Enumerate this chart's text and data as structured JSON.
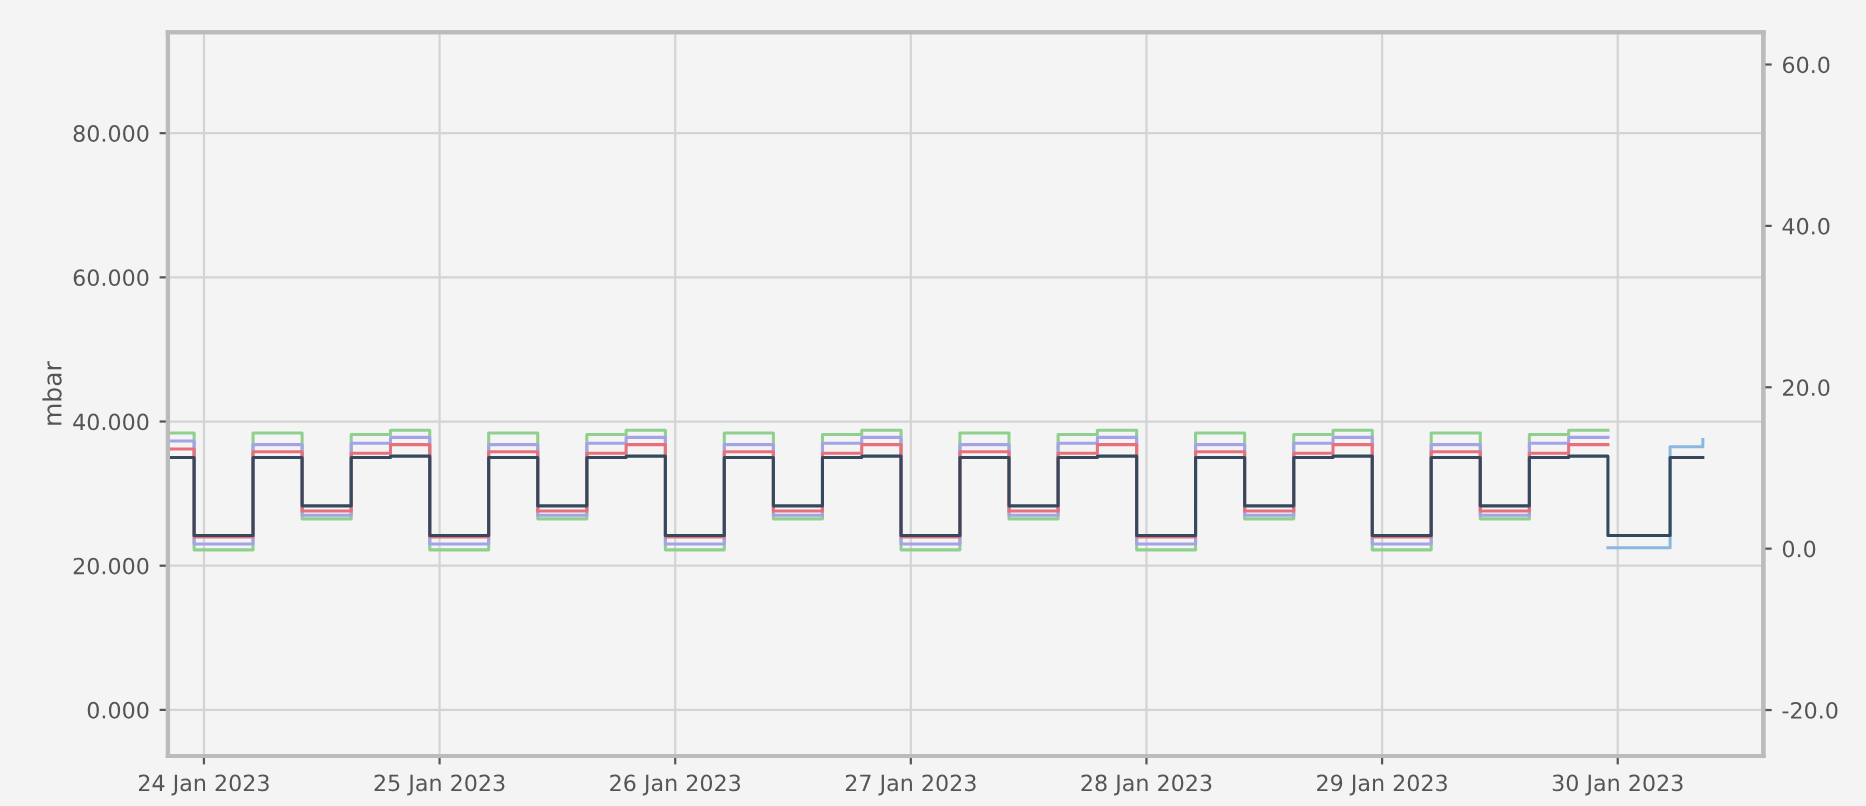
{
  "chart_data": {
    "type": "step",
    "ylabel": "mbar",
    "x": [
      "2023-01-23T20:20",
      "2023-01-23T23:00",
      "2023-01-24T05:00",
      "2023-01-24T10:00",
      "2023-01-24T15:00",
      "2023-01-24T19:00",
      "2023-01-24T23:00",
      "2023-01-25T05:00",
      "2023-01-25T10:00",
      "2023-01-25T15:00",
      "2023-01-25T19:00",
      "2023-01-25T23:00",
      "2023-01-26T05:00",
      "2023-01-26T10:00",
      "2023-01-26T15:00",
      "2023-01-26T19:00",
      "2023-01-26T23:00",
      "2023-01-27T05:00",
      "2023-01-27T10:00",
      "2023-01-27T15:00",
      "2023-01-27T19:00",
      "2023-01-27T23:00",
      "2023-01-28T05:00",
      "2023-01-28T10:00",
      "2023-01-28T15:00",
      "2023-01-28T19:00",
      "2023-01-28T23:00",
      "2023-01-29T05:00",
      "2023-01-29T10:00",
      "2023-01-29T15:00",
      "2023-01-29T19:00",
      "2023-01-29T23:00",
      "2023-01-30T05:20",
      "2023-01-30T08:40"
    ],
    "series": [
      {
        "color": "#8fd08f",
        "values": [
          38.4,
          22.2,
          38.4,
          26.5,
          38.2,
          38.8,
          22.2,
          38.4,
          26.5,
          38.2,
          38.8,
          22.2,
          38.4,
          26.5,
          38.2,
          38.8,
          22.2,
          38.4,
          26.5,
          38.2,
          38.8,
          22.2,
          38.4,
          26.5,
          38.2,
          38.8,
          22.2,
          38.4,
          26.5,
          38.2,
          38.8,
          38.8,
          null,
          null
        ]
      },
      {
        "color": "#a3a3e6",
        "values": [
          37.3,
          23.0,
          36.8,
          27.0,
          37.0,
          37.8,
          23.0,
          36.8,
          27.0,
          37.0,
          37.8,
          23.0,
          36.8,
          27.0,
          37.0,
          37.8,
          23.0,
          36.8,
          27.0,
          37.0,
          37.8,
          23.0,
          36.8,
          27.0,
          37.0,
          37.8,
          23.0,
          36.8,
          27.0,
          37.0,
          37.8,
          37.8,
          null,
          null
        ]
      },
      {
        "color": "#e8707a",
        "values": [
          36.2,
          24.0,
          35.8,
          27.6,
          35.6,
          36.8,
          24.0,
          35.8,
          27.6,
          35.6,
          36.8,
          24.0,
          35.8,
          27.6,
          35.6,
          36.8,
          24.0,
          35.8,
          27.6,
          35.6,
          36.8,
          24.0,
          35.8,
          27.6,
          35.6,
          36.8,
          24.0,
          35.8,
          27.6,
          35.6,
          36.8,
          36.8,
          null,
          null
        ]
      },
      {
        "color": "#8ab8e0",
        "values": [
          null,
          null,
          null,
          null,
          null,
          null,
          null,
          null,
          null,
          null,
          null,
          null,
          null,
          null,
          null,
          null,
          null,
          null,
          null,
          null,
          null,
          null,
          null,
          null,
          null,
          null,
          null,
          null,
          null,
          null,
          null,
          22.5,
          36.5,
          37.5
        ]
      },
      {
        "color": "#34495e",
        "values": [
          35.0,
          24.2,
          35.0,
          28.3,
          35.0,
          35.2,
          24.2,
          35.0,
          28.3,
          35.0,
          35.2,
          24.2,
          35.0,
          28.3,
          35.0,
          35.2,
          24.2,
          35.0,
          28.3,
          35.0,
          35.2,
          24.2,
          35.0,
          28.3,
          35.0,
          35.2,
          24.2,
          35.0,
          28.3,
          35.0,
          35.2,
          24.2,
          35.0,
          35.0
        ]
      }
    ],
    "xlim": [
      "2023-01-23T20:20",
      "2023-01-30T14:50"
    ],
    "xticks": [
      {
        "value": "2023-01-24",
        "label": "24 Jan 2023"
      },
      {
        "value": "2023-01-25",
        "label": "25 Jan 2023"
      },
      {
        "value": "2023-01-26",
        "label": "26 Jan 2023"
      },
      {
        "value": "2023-01-27",
        "label": "27 Jan 2023"
      },
      {
        "value": "2023-01-28",
        "label": "28 Jan 2023"
      },
      {
        "value": "2023-01-29",
        "label": "29 Jan 2023"
      },
      {
        "value": "2023-01-30",
        "label": "30 Jan 2023"
      }
    ],
    "ylim": [
      -6.4,
      94
    ],
    "yticks": [
      {
        "value": 0,
        "label": "0.000"
      },
      {
        "value": 20,
        "label": "20.000"
      },
      {
        "value": 40,
        "label": "40.000"
      },
      {
        "value": 60,
        "label": "60.000"
      },
      {
        "value": 80,
        "label": "80.000"
      }
    ],
    "y2lim": [
      -25.7,
      64
    ],
    "y2ticks": [
      {
        "value": -20,
        "label": "-20.0"
      },
      {
        "value": 0,
        "label": "0.0"
      },
      {
        "value": 20,
        "label": "20.0"
      },
      {
        "value": 40,
        "label": "40.0"
      },
      {
        "value": 60,
        "label": "60.0"
      }
    ],
    "grid": true,
    "legend": false,
    "line_style": "solid",
    "marker": "none"
  }
}
